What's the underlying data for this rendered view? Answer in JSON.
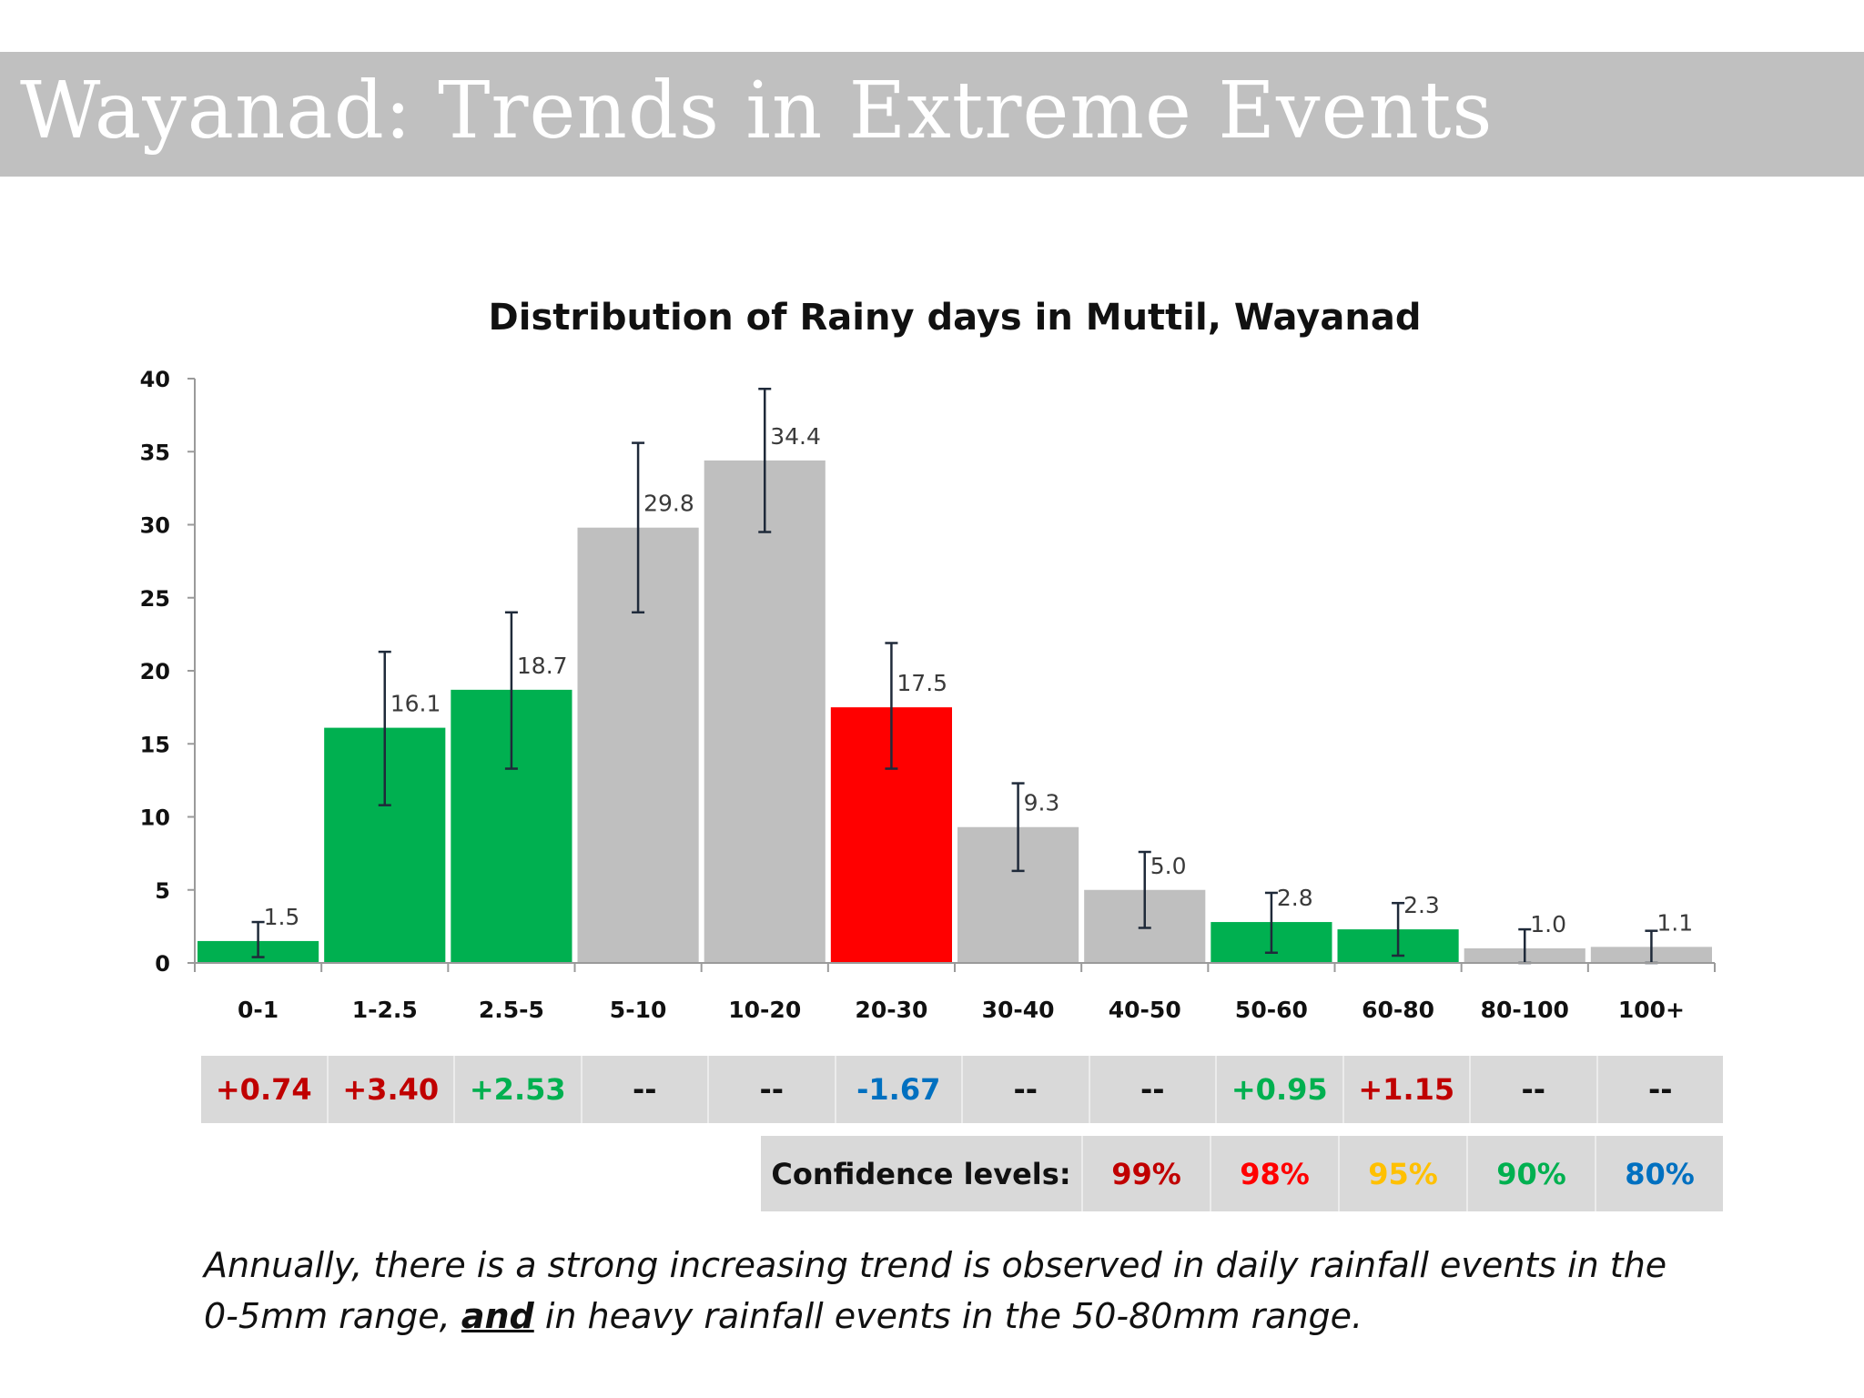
{
  "slide": {
    "title": "Wayanad: Trends in Extreme Events"
  },
  "chart_data": {
    "type": "bar",
    "title": "Distribution of Rainy days in Muttil, Wayanad",
    "categories": [
      "0-1",
      "1-2.5",
      "2.5-5",
      "5-10",
      "10-20",
      "20-30",
      "30-40",
      "40-50",
      "50-60",
      "60-80",
      "80-100",
      "100+"
    ],
    "values": [
      1.5,
      16.1,
      18.7,
      29.8,
      34.4,
      17.5,
      9.3,
      5.0,
      2.8,
      2.3,
      1.0,
      1.1
    ],
    "value_labels": [
      "1.5",
      "16.1",
      "18.7",
      "29.8",
      "34.4",
      "17.5",
      "9.3",
      "5.0",
      "2.8",
      "2.3",
      "1.0",
      "1.1"
    ],
    "error_bars": [
      [
        0.4,
        2.8
      ],
      [
        10.8,
        21.3
      ],
      [
        13.3,
        24.0
      ],
      [
        24.0,
        35.6
      ],
      [
        29.5,
        39.3
      ],
      [
        13.3,
        21.9
      ],
      [
        6.3,
        12.3
      ],
      [
        2.4,
        7.6
      ],
      [
        0.7,
        4.8
      ],
      [
        0.5,
        4.1
      ],
      [
        0.0,
        2.3
      ],
      [
        0.0,
        2.2
      ]
    ],
    "bar_colors": [
      "#00b050",
      "#00b050",
      "#00b050",
      "#bfbfbf",
      "#bfbfbf",
      "#ff0000",
      "#bfbfbf",
      "#bfbfbf",
      "#00b050",
      "#00b050",
      "#bfbfbf",
      "#bfbfbf"
    ],
    "ylim": [
      0,
      40
    ],
    "yticks": [
      0,
      5,
      10,
      15,
      20,
      25,
      30,
      35,
      40
    ],
    "xlabel": "",
    "ylabel": "",
    "grid": false,
    "legend": "none"
  },
  "trends": [
    {
      "text": "+0.74",
      "color": "#c00000"
    },
    {
      "text": "+3.40",
      "color": "#c00000"
    },
    {
      "text": "+2.53",
      "color": "#00b050"
    },
    {
      "text": "--",
      "color": "#111111"
    },
    {
      "text": "--",
      "color": "#111111"
    },
    {
      "text": "-1.67",
      "color": "#0070c0"
    },
    {
      "text": "--",
      "color": "#111111"
    },
    {
      "text": "--",
      "color": "#111111"
    },
    {
      "text": "+0.95",
      "color": "#00b050"
    },
    {
      "text": "+1.15",
      "color": "#c00000"
    },
    {
      "text": "--",
      "color": "#111111"
    },
    {
      "text": "--",
      "color": "#111111"
    }
  ],
  "confidence": {
    "label": "Confidence levels:",
    "levels": [
      {
        "text": "99%",
        "color": "#c00000"
      },
      {
        "text": "98%",
        "color": "#ff0000"
      },
      {
        "text": "95%",
        "color": "#ffc000"
      },
      {
        "text": "90%",
        "color": "#00b050"
      },
      {
        "text": "80%",
        "color": "#0070c0"
      }
    ]
  },
  "caption": {
    "part1": "Annually, there is a strong increasing trend is observed in daily rainfall events in the 0-5mm range, ",
    "emphasis": "and",
    "part2": " in heavy rainfall events in the 50-80mm range."
  }
}
